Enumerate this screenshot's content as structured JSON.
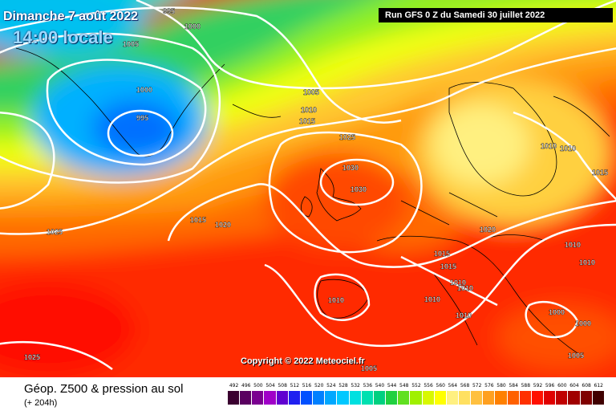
{
  "header": {
    "date_label": "Dimanche 7 août 2022",
    "time_label": "14:00 locale",
    "run_label": "Run GFS 0 Z du Samedi 30 juillet 2022"
  },
  "map": {
    "copyright": "Copyright © 2022 Meteociel.fr",
    "isobar_labels": [
      "995",
      "1000",
      "1005",
      "1000",
      "995",
      "1005",
      "1010",
      "1015",
      "1025",
      "1030",
      "1030",
      "1010",
      "1010",
      "1015",
      "1025",
      "1015",
      "1020",
      "1020",
      "1015",
      "1015",
      "1010",
      "1010",
      "1010",
      "1010",
      "1010",
      "1010",
      "1010",
      "1000",
      "1000",
      "1005",
      "1025",
      "1005"
    ]
  },
  "footer": {
    "title": "Géop. Z500 & pression au sol",
    "subtitle": "(+ 204h)"
  },
  "legend": {
    "values": [
      "492",
      "496",
      "500",
      "504",
      "508",
      "512",
      "516",
      "520",
      "524",
      "528",
      "532",
      "536",
      "540",
      "544",
      "548",
      "552",
      "556",
      "560",
      "564",
      "568",
      "572",
      "576",
      "580",
      "584",
      "588",
      "592",
      "596",
      "600",
      "604",
      "608",
      "612"
    ],
    "colors": [
      "#3a0030",
      "#5a0060",
      "#7a0090",
      "#a000c8",
      "#6000d0",
      "#2020f0",
      "#0050ff",
      "#0080ff",
      "#00a8ff",
      "#00c8ff",
      "#00e0e0",
      "#00e0b0",
      "#00d080",
      "#20d040",
      "#60e020",
      "#a0f000",
      "#d8f800",
      "#ffff00",
      "#fff080",
      "#ffe060",
      "#ffc040",
      "#ffa020",
      "#ff8000",
      "#ff6000",
      "#ff3000",
      "#ff1000",
      "#e00000",
      "#c00000",
      "#a00000",
      "#800000",
      "#400000"
    ]
  }
}
